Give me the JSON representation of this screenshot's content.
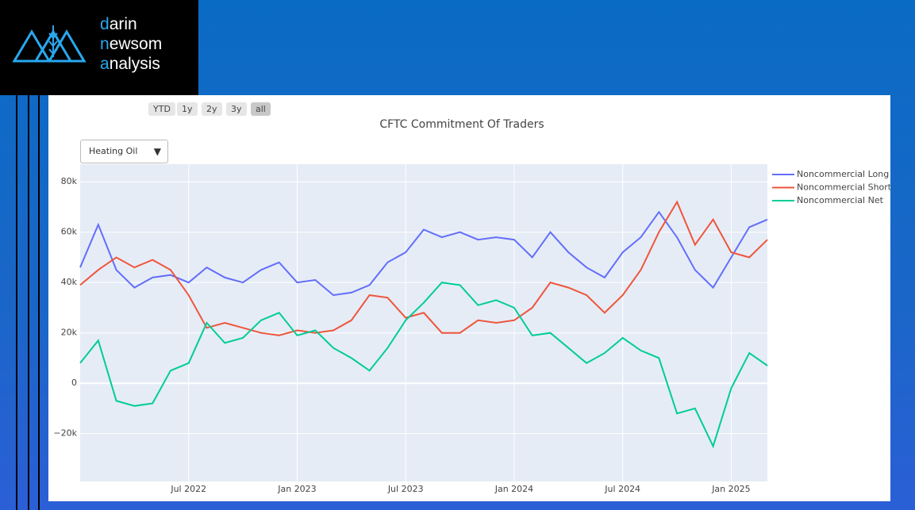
{
  "logo": [
    "darin",
    "newsom",
    "analysis"
  ],
  "range_buttons": [
    "YTD",
    "1y",
    "2y",
    "3y",
    "all"
  ],
  "dropdown": "Heating Oil",
  "chart_data": {
    "type": "line",
    "title": "CFTC Commitment Of Traders",
    "x": [
      "2022-01",
      "2022-02",
      "2022-03",
      "2022-04",
      "2022-05",
      "2022-06",
      "2022-07",
      "2022-08",
      "2022-09",
      "2022-10",
      "2022-11",
      "2022-12",
      "2023-01",
      "2023-02",
      "2023-03",
      "2023-04",
      "2023-05",
      "2023-06",
      "2023-07",
      "2023-08",
      "2023-09",
      "2023-10",
      "2023-11",
      "2023-12",
      "2024-01",
      "2024-02",
      "2024-03",
      "2024-04",
      "2024-05",
      "2024-06",
      "2024-07",
      "2024-08",
      "2024-09",
      "2024-10",
      "2024-11",
      "2024-12",
      "2025-01",
      "2025-02",
      "2025-03"
    ],
    "series": [
      {
        "name": "Noncommercial Long",
        "color": "#636efa",
        "values": [
          46000,
          63000,
          45000,
          38000,
          42000,
          43000,
          40000,
          46000,
          42000,
          40000,
          45000,
          48000,
          40000,
          41000,
          35000,
          36000,
          39000,
          48000,
          52000,
          61000,
          58000,
          60000,
          57000,
          58000,
          57000,
          50000,
          60000,
          52000,
          46000,
          42000,
          52000,
          58000,
          68000,
          58000,
          45000,
          38000,
          50000,
          62000,
          65000
        ]
      },
      {
        "name": "Noncommercial Short",
        "color": "#EF553B",
        "values": [
          39000,
          45000,
          50000,
          46000,
          49000,
          45000,
          35000,
          22000,
          24000,
          22000,
          20000,
          19000,
          21000,
          20000,
          21000,
          25000,
          35000,
          34000,
          26000,
          28000,
          20000,
          20000,
          25000,
          24000,
          25000,
          30000,
          40000,
          38000,
          35000,
          28000,
          35000,
          45000,
          60000,
          72000,
          55000,
          65000,
          52000,
          50000,
          57000
        ]
      },
      {
        "name": "Noncommercial Net",
        "color": "#00cc96",
        "values": [
          8000,
          17000,
          -7000,
          -9000,
          -8000,
          5000,
          8000,
          24000,
          16000,
          18000,
          25000,
          28000,
          19000,
          21000,
          14000,
          10000,
          5000,
          14000,
          25000,
          32000,
          40000,
          39000,
          31000,
          33000,
          30000,
          19000,
          20000,
          14000,
          8000,
          12000,
          18000,
          13000,
          10000,
          -12000,
          -10000,
          -25000,
          -2000,
          12000,
          7000
        ]
      }
    ],
    "xlim": [
      "2022-01",
      "2025-03"
    ],
    "xticks": [
      {
        "value": "2022-07",
        "label": "Jul 2022"
      },
      {
        "value": "2023-01",
        "label": "Jan 2023"
      },
      {
        "value": "2023-07",
        "label": "Jul 2023"
      },
      {
        "value": "2024-01",
        "label": "Jan 2024"
      },
      {
        "value": "2024-07",
        "label": "Jul 2024"
      },
      {
        "value": "2025-01",
        "label": "Jan 2025"
      }
    ],
    "ylim": [
      -39000,
      87000
    ],
    "yticks": [
      {
        "value": -20000,
        "label": "−20k"
      },
      0,
      {
        "value": 20000,
        "label": "20k"
      },
      {
        "value": 40000,
        "label": "40k"
      },
      {
        "value": 60000,
        "label": "60k"
      },
      {
        "value": 80000,
        "label": "80k"
      }
    ],
    "grid": true,
    "legend": "right"
  }
}
